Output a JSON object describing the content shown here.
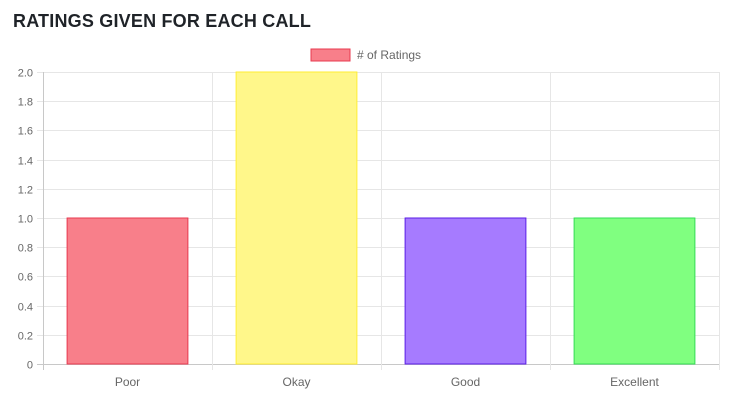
{
  "header": {
    "title": "RATINGS GIVEN FOR EACH CALL"
  },
  "chart_data": {
    "type": "bar",
    "title": "",
    "xlabel": "",
    "ylabel": "",
    "categories": [
      "Poor",
      "Okay",
      "Good",
      "Excellent"
    ],
    "series": [
      {
        "name": "# of Ratings",
        "values": [
          1,
          2,
          1,
          1
        ]
      }
    ],
    "ylim": [
      0,
      2
    ],
    "ystep": 0.2,
    "yticks": [
      "0",
      "0.2",
      "0.4",
      "0.6",
      "0.8",
      "1.0",
      "1.2",
      "1.4",
      "1.6",
      "1.8",
      "2.0"
    ],
    "grid": true,
    "legend_position": "top-center",
    "legend": {
      "color": "#f87f8a",
      "border": "#e8384f"
    },
    "bar_colors": [
      {
        "fill": "#f87f8a",
        "stroke": "#e8384f"
      },
      {
        "fill": "#fff78a",
        "stroke": "#ffee33"
      },
      {
        "fill": "#a67bff",
        "stroke": "#5a1ee6"
      },
      {
        "fill": "#80ff80",
        "stroke": "#33dd55"
      }
    ]
  }
}
